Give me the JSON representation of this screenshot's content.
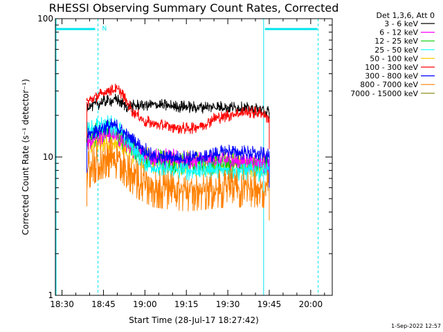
{
  "chart_data": {
    "type": "line",
    "title": "RHESSI Observing Summary Count Rates, Corrected",
    "xlabel": "Start Time (28-Jul-17 18:27:42)",
    "ylabel": "Corrected Count Rate (s⁻¹ detector⁻¹)",
    "y_scale": "log",
    "ylim": [
      1,
      100
    ],
    "xlim_minutes": [
      18.46,
      20.13
    ],
    "x_ticks": [
      "18:30",
      "18:45",
      "19:00",
      "19:15",
      "19:30",
      "19:45",
      "20:00"
    ],
    "y_ticks": [
      "1",
      "10",
      "100"
    ],
    "legend_title": "Det 1,3,6, Att 0",
    "legend_position": "top-right",
    "timestamp": "1-Sep-2022 12:57",
    "annotation": "N",
    "time_markers_hours": {
      "night_end": 18.717,
      "night_start": 19.717,
      "cyan_solid": [
        18.46,
        19.716
      ],
      "cyan_dashed": [
        18.717,
        20.045
      ]
    },
    "night_bars": [
      [
        18.46,
        18.7
      ],
      [
        19.72,
        20.04
      ]
    ],
    "series": [
      {
        "name": "3 - 6 keV",
        "color": "#000000",
        "points": [
          [
            18.65,
            23
          ],
          [
            18.75,
            25
          ],
          [
            18.83,
            26
          ],
          [
            18.9,
            23
          ],
          [
            19.0,
            24
          ],
          [
            19.25,
            23
          ],
          [
            19.5,
            23
          ],
          [
            19.7,
            22
          ],
          [
            19.75,
            21
          ]
        ]
      },
      {
        "name": "6 - 12 keV",
        "color": "#ff00ff",
        "points": [
          [
            18.65,
            13
          ],
          [
            18.72,
            14
          ],
          [
            18.8,
            15
          ],
          [
            18.88,
            13
          ],
          [
            19.0,
            10
          ],
          [
            19.25,
            9.5
          ],
          [
            19.5,
            9.5
          ],
          [
            19.75,
            9
          ]
        ]
      },
      {
        "name": "12 - 25 keV",
        "color": "#00cc00",
        "points": [
          [
            18.65,
            13
          ],
          [
            18.72,
            15
          ],
          [
            18.8,
            15
          ],
          [
            18.88,
            13
          ],
          [
            19.0,
            10
          ],
          [
            19.25,
            9
          ],
          [
            19.5,
            9
          ],
          [
            19.75,
            8.8
          ]
        ]
      },
      {
        "name": "25 - 50 keV",
        "color": "#00ffff",
        "points": [
          [
            18.65,
            15
          ],
          [
            18.75,
            17
          ],
          [
            18.82,
            17
          ],
          [
            18.9,
            13
          ],
          [
            19.0,
            9
          ],
          [
            19.1,
            8
          ],
          [
            19.25,
            8
          ],
          [
            19.5,
            8
          ],
          [
            19.75,
            7.8
          ]
        ]
      },
      {
        "name": "50 - 100 keV",
        "color": "#ffcc00",
        "points": [
          [
            18.65,
            12
          ],
          [
            18.75,
            13
          ],
          [
            18.85,
            12
          ],
          [
            18.95,
            10
          ],
          [
            19.1,
            9
          ],
          [
            19.5,
            9
          ],
          [
            19.75,
            8.5
          ]
        ]
      },
      {
        "name": "100 - 300 keV",
        "color": "#ff0000",
        "points": [
          [
            18.65,
            25
          ],
          [
            18.7,
            27
          ],
          [
            18.8,
            31
          ],
          [
            18.85,
            30
          ],
          [
            18.92,
            22
          ],
          [
            19.0,
            18
          ],
          [
            19.1,
            17
          ],
          [
            19.25,
            16
          ],
          [
            19.35,
            17
          ],
          [
            19.42,
            19
          ],
          [
            19.5,
            20
          ],
          [
            19.6,
            21
          ],
          [
            19.7,
            21
          ],
          [
            19.75,
            19
          ]
        ]
      },
      {
        "name": "300 - 800 keV",
        "color": "#0000ff",
        "points": [
          [
            18.65,
            14
          ],
          [
            18.72,
            16
          ],
          [
            18.82,
            17
          ],
          [
            18.9,
            14
          ],
          [
            18.97,
            12
          ],
          [
            19.05,
            10
          ],
          [
            19.25,
            9.8
          ],
          [
            19.35,
            10
          ],
          [
            19.5,
            11
          ],
          [
            19.7,
            10.5
          ],
          [
            19.75,
            10
          ]
        ]
      },
      {
        "name": "800 - 7000 keV",
        "color": "#ff8000",
        "points": [
          [
            18.65,
            8
          ],
          [
            18.72,
            9.5
          ],
          [
            18.8,
            10
          ],
          [
            18.88,
            8.5
          ],
          [
            18.95,
            7
          ],
          [
            19.05,
            6
          ],
          [
            19.25,
            5.6
          ],
          [
            19.5,
            6
          ],
          [
            19.7,
            6
          ],
          [
            19.75,
            5.8
          ]
        ]
      },
      {
        "name": "7000 - 15000 keV",
        "color": "#808000",
        "points": []
      }
    ]
  }
}
